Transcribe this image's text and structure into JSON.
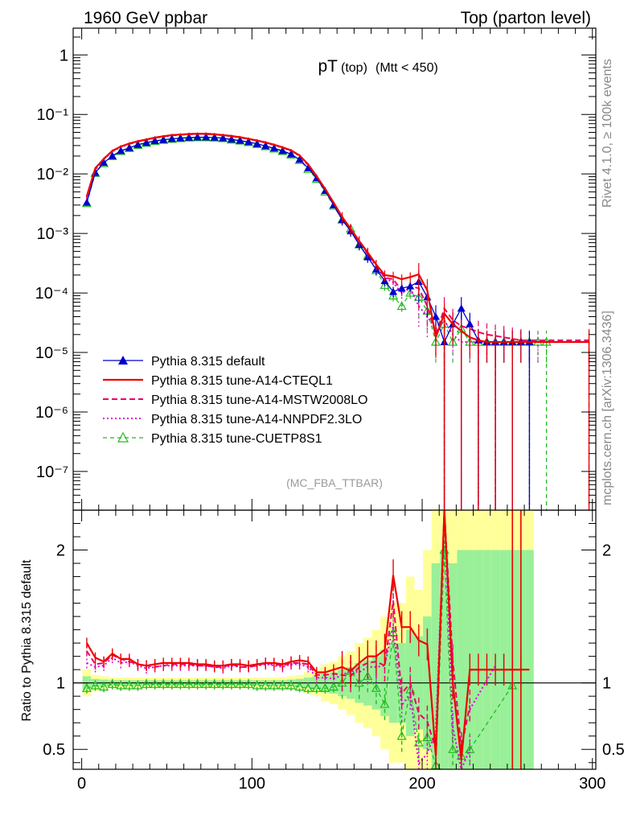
{
  "header": {
    "left": "1960 GeV ppbar",
    "right": "Top (parton level)"
  },
  "side_labels": {
    "rivet": "Rivet 4.1.0, ≥ 100k events",
    "mcplots": "mcplots.cern.ch [arXiv:1306.3436]"
  },
  "chart_data": [
    {
      "type": "line",
      "panel": "main",
      "title_main": "pT",
      "title_sub1": "(top)",
      "title_sub2": "(Mtt < 450)",
      "analysis_tag": "(MC_FBA_TTBAR)",
      "xlabel": "",
      "ylabel": "",
      "xlim": [
        -5,
        302
      ],
      "ylog": true,
      "ylim_log10": [
        -7.65,
        0.45
      ],
      "y_tick_labels": [
        "1",
        "10⁻¹",
        "10⁻²",
        "10⁻³",
        "10⁻⁴",
        "10⁻⁵",
        "10⁻⁶",
        "10⁻⁷"
      ],
      "x_tick_labels": [
        "0",
        "100",
        "200",
        "300"
      ],
      "colors": {
        "default": "#0000cc",
        "cteql1": "#ee0000",
        "mstw": "#ee0066",
        "nnpdf": "#dd00dd",
        "cuetp8s1": "#22bb22"
      },
      "legend": [
        {
          "key": "default",
          "label": "Pythia 8.315 default"
        },
        {
          "key": "cteql1",
          "label": "Pythia 8.315 tune-A14-CTEQL1"
        },
        {
          "key": "mstw",
          "label": "Pythia 8.315 tune-A14-MSTW2008LO"
        },
        {
          "key": "nnpdf",
          "label": "Pythia 8.315 tune-A14-NNPDF2.3LO"
        },
        {
          "key": "cuetp8s1",
          "label": "Pythia 8.315 tune-CUETP8S1"
        }
      ],
      "series_default_x": [
        3,
        8,
        13,
        18,
        23,
        28,
        33,
        38,
        43,
        48,
        53,
        58,
        63,
        68,
        73,
        78,
        83,
        88,
        93,
        98,
        103,
        108,
        113,
        118,
        123,
        128,
        133,
        138,
        143,
        148,
        153,
        158,
        163,
        168,
        173,
        178,
        183,
        188,
        193,
        198,
        203,
        208,
        213,
        218,
        223,
        228,
        233,
        238,
        243,
        248,
        253,
        258,
        263
      ],
      "series_default_y": [
        0.0033,
        0.0105,
        0.0155,
        0.02,
        0.0245,
        0.0275,
        0.031,
        0.0335,
        0.036,
        0.0375,
        0.039,
        0.04,
        0.041,
        0.0415,
        0.0415,
        0.041,
        0.04,
        0.038,
        0.0365,
        0.0345,
        0.032,
        0.0295,
        0.027,
        0.0245,
        0.0215,
        0.0175,
        0.0125,
        0.0085,
        0.0052,
        0.003,
        0.0017,
        0.0011,
        0.00065,
        0.0004,
        0.00025,
        0.00016,
        0.000105,
        0.00012,
        0.00013,
        0.000155,
        8.5e-05,
        4e-05,
        1.5e-05,
        3e-05,
        5.5e-05,
        3e-05,
        1.6e-05,
        1.5e-05,
        1.5e-05,
        1.5e-05,
        1.5e-05,
        1.5e-05,
        1.5e-05
      ],
      "series_cteql1_x": [
        3,
        8,
        13,
        18,
        23,
        28,
        33,
        38,
        43,
        48,
        53,
        58,
        63,
        68,
        73,
        78,
        83,
        88,
        93,
        98,
        103,
        108,
        113,
        118,
        123,
        128,
        133,
        138,
        143,
        148,
        153,
        158,
        163,
        168,
        173,
        178,
        183,
        188,
        193,
        198,
        203,
        208,
        213,
        218,
        223,
        228,
        233,
        238,
        243,
        248,
        253,
        258,
        298
      ],
      "series_cteql1_y": [
        0.0042,
        0.0125,
        0.018,
        0.0245,
        0.029,
        0.0325,
        0.0355,
        0.038,
        0.041,
        0.043,
        0.045,
        0.046,
        0.047,
        0.0475,
        0.0475,
        0.0465,
        0.045,
        0.0435,
        0.0415,
        0.039,
        0.0365,
        0.034,
        0.031,
        0.028,
        0.025,
        0.0205,
        0.0145,
        0.0092,
        0.0056,
        0.0033,
        0.0019,
        0.0012,
        0.00075,
        0.00048,
        0.0003,
        0.0002,
        0.00019,
        0.00017,
        0.000185,
        0.000205,
        0.00011,
        1.8e-05,
        4.5e-05,
        3e-05,
        2.3e-05,
        1.8e-05,
        1.6e-05,
        1.5e-05,
        1.5e-05,
        1.5e-05,
        1.5e-05,
        1.5e-05,
        1.5e-05
      ],
      "series_mstw_x": [
        3,
        8,
        13,
        18,
        23,
        28,
        33,
        38,
        43,
        48,
        53,
        58,
        63,
        68,
        73,
        78,
        83,
        88,
        93,
        98,
        103,
        108,
        113,
        118,
        123,
        128,
        133,
        138,
        143,
        148,
        153,
        158,
        163,
        168,
        173,
        178,
        183,
        188,
        193,
        198,
        203,
        208,
        213,
        218,
        223,
        228,
        233,
        238,
        243,
        248,
        253,
        258,
        298
      ],
      "series_mstw_y": [
        0.0041,
        0.012,
        0.0178,
        0.0242,
        0.0288,
        0.032,
        0.0352,
        0.0378,
        0.0405,
        0.0425,
        0.0445,
        0.0455,
        0.0465,
        0.047,
        0.047,
        0.046,
        0.0448,
        0.0432,
        0.041,
        0.0388,
        0.0362,
        0.0338,
        0.0308,
        0.0278,
        0.0248,
        0.0202,
        0.0142,
        0.009,
        0.0055,
        0.0032,
        0.0018,
        0.00115,
        0.00073,
        0.00046,
        0.00029,
        0.00018,
        0.00017,
        0.00011,
        0.00013,
        0.00012,
        6e-05,
        2e-05,
        5.5e-05,
        3.5e-05,
        2.8e-05,
        2.5e-05,
        2.2e-05,
        2e-05,
        1.9e-05,
        1.8e-05,
        1.7e-05,
        1.6e-05,
        1.6e-05
      ],
      "series_nnpdf_x": [
        3,
        8,
        13,
        18,
        23,
        28,
        33,
        38,
        43,
        48,
        53,
        58,
        63,
        68,
        73,
        78,
        83,
        88,
        93,
        98,
        103,
        108,
        113,
        118,
        123,
        128,
        133,
        138,
        143,
        148,
        153,
        158,
        163,
        168,
        173,
        178,
        183,
        188,
        193,
        198,
        203,
        208,
        213,
        218,
        223,
        228,
        233,
        238,
        243,
        248,
        253,
        258,
        263,
        268
      ],
      "series_nnpdf_y": [
        0.0038,
        0.0118,
        0.0175,
        0.0238,
        0.0282,
        0.0318,
        0.035,
        0.0372,
        0.0402,
        0.0422,
        0.044,
        0.0452,
        0.0462,
        0.0468,
        0.0468,
        0.0458,
        0.0445,
        0.0428,
        0.0408,
        0.0385,
        0.036,
        0.0335,
        0.0305,
        0.0275,
        0.0245,
        0.02,
        0.014,
        0.0088,
        0.0054,
        0.0031,
        0.0018,
        0.0012,
        0.0007,
        0.00045,
        0.00028,
        0.00018,
        0.00015,
        0.0001,
        0.00012,
        6e-05,
        4e-05,
        2.5e-05,
        3.5e-05,
        2e-05,
        1.5e-05,
        1.5e-05,
        1.5e-05,
        1.5e-05,
        1.5e-05,
        1.5e-05,
        1.5e-05,
        1.5e-05,
        1.5e-05,
        1.5e-05
      ],
      "series_cuetp8s1_x": [
        3,
        8,
        13,
        18,
        23,
        28,
        33,
        38,
        43,
        48,
        53,
        58,
        63,
        68,
        73,
        78,
        83,
        88,
        93,
        98,
        103,
        108,
        113,
        118,
        123,
        128,
        133,
        138,
        143,
        148,
        153,
        158,
        163,
        168,
        173,
        178,
        183,
        188,
        193,
        198,
        203,
        208,
        213,
        218,
        223,
        228,
        233,
        238,
        243,
        248,
        253,
        258,
        263,
        268,
        273
      ],
      "series_cuetp8s1_y": [
        0.0032,
        0.0103,
        0.015,
        0.0198,
        0.024,
        0.027,
        0.0305,
        0.033,
        0.0355,
        0.037,
        0.0385,
        0.0395,
        0.0405,
        0.041,
        0.041,
        0.0405,
        0.0395,
        0.0375,
        0.036,
        0.034,
        0.0315,
        0.029,
        0.0265,
        0.024,
        0.021,
        0.017,
        0.012,
        0.0082,
        0.005,
        0.0029,
        0.0017,
        0.0012,
        0.00065,
        0.00042,
        0.00024,
        0.000135,
        9e-05,
        6e-05,
        0.0001,
        8.5e-05,
        5e-05,
        1.5e-05,
        3e-05,
        1.5e-05,
        2.5e-05,
        1.5e-05,
        1.5e-05,
        1.5e-05,
        1.5e-05,
        1.5e-05,
        1.5e-05,
        1.5e-05,
        1.5e-05,
        1.5e-05,
        1.5e-05
      ]
    },
    {
      "type": "line",
      "panel": "ratio",
      "ylabel": "Ratio to Pythia 8.315 default",
      "xlim": [
        -5,
        302
      ],
      "ylim": [
        0.35,
        2.3
      ],
      "y_tick_labels": [
        "0.5",
        "1",
        "2"
      ],
      "x_tick_labels": [
        "0",
        "100",
        "200",
        "300"
      ],
      "band_x": [
        3,
        8,
        13,
        18,
        23,
        28,
        33,
        38,
        43,
        48,
        53,
        58,
        63,
        68,
        73,
        78,
        83,
        88,
        93,
        98,
        103,
        108,
        113,
        118,
        123,
        128,
        133,
        138,
        143,
        148,
        153,
        158,
        163,
        168,
        173,
        178,
        183,
        188,
        193,
        198,
        203,
        208,
        213,
        218,
        223,
        228,
        233,
        238,
        243,
        248,
        253,
        258,
        263
      ],
      "band_green_halfwidth": [
        0.05,
        0.03,
        0.025,
        0.02,
        0.02,
        0.02,
        0.02,
        0.02,
        0.02,
        0.02,
        0.02,
        0.02,
        0.02,
        0.02,
        0.02,
        0.02,
        0.02,
        0.02,
        0.02,
        0.02,
        0.02,
        0.02,
        0.02,
        0.02,
        0.025,
        0.03,
        0.04,
        0.05,
        0.07,
        0.08,
        0.1,
        0.12,
        0.15,
        0.17,
        0.2,
        0.25,
        0.3,
        0.3,
        0.4,
        0.35,
        0.5,
        0.9,
        1.0,
        0.9,
        1.0,
        1.0,
        1.0,
        1.0,
        1.0,
        1.0,
        1.0,
        1.0,
        1.0
      ],
      "band_yellow_halfwidth": [
        0.1,
        0.06,
        0.05,
        0.04,
        0.04,
        0.04,
        0.04,
        0.04,
        0.04,
        0.04,
        0.04,
        0.04,
        0.04,
        0.04,
        0.04,
        0.04,
        0.04,
        0.04,
        0.04,
        0.04,
        0.04,
        0.04,
        0.04,
        0.045,
        0.05,
        0.06,
        0.08,
        0.1,
        0.14,
        0.16,
        0.2,
        0.24,
        0.3,
        0.34,
        0.4,
        0.5,
        0.6,
        0.6,
        0.8,
        0.7,
        1.0,
        1.8,
        2.0,
        1.8,
        2.0,
        2.0,
        2.0,
        2.0,
        2.0,
        2.0,
        2.0,
        2.0,
        2.0
      ],
      "ratio_cteql1_y": [
        1.3,
        1.19,
        1.16,
        1.22,
        1.18,
        1.18,
        1.14,
        1.13,
        1.14,
        1.15,
        1.15,
        1.15,
        1.15,
        1.14,
        1.14,
        1.13,
        1.13,
        1.14,
        1.14,
        1.13,
        1.14,
        1.15,
        1.15,
        1.14,
        1.16,
        1.17,
        1.16,
        1.08,
        1.08,
        1.1,
        1.12,
        1.09,
        1.15,
        1.2,
        1.2,
        1.25,
        1.81,
        1.42,
        1.42,
        1.32,
        1.29,
        0.45,
        3.0,
        1.0,
        0.42,
        1.1,
        1.1,
        1.1,
        1.1,
        1.1,
        1.1,
        1.1
      ],
      "ratio_mstw_y": [
        1.24,
        1.14,
        1.15,
        1.21,
        1.18,
        1.16,
        1.14,
        1.13,
        1.12,
        1.13,
        1.14,
        1.14,
        1.14,
        1.13,
        1.13,
        1.12,
        1.12,
        1.14,
        1.12,
        1.12,
        1.13,
        1.15,
        1.14,
        1.13,
        1.15,
        1.15,
        1.14,
        1.06,
        1.06,
        1.07,
        1.06,
        1.05,
        1.12,
        1.15,
        1.16,
        1.13,
        1.62,
        0.92,
        1.0,
        0.77,
        0.71,
        0.5,
        3.67,
        1.17,
        0.51,
        0.83
      ],
      "ratio_nnpdf_y": [
        1.15,
        1.12,
        1.13,
        1.19,
        1.15,
        1.16,
        1.13,
        1.11,
        1.12,
        1.13,
        1.13,
        1.13,
        1.13,
        1.13,
        1.13,
        1.12,
        1.11,
        1.13,
        1.12,
        1.12,
        1.13,
        1.14,
        1.13,
        1.12,
        1.14,
        1.14,
        1.12,
        1.04,
        1.04,
        1.03,
        1.06,
        1.09,
        1.08,
        1.12,
        1.12,
        1.13,
        1.43,
        0.83,
        0.92,
        0.39,
        0.47,
        0.63,
        2.33,
        0.67,
        0.27,
        0.5
      ],
      "ratio_cuetp8s1_y": [
        0.96,
        0.98,
        0.97,
        0.99,
        0.98,
        0.98,
        0.98,
        0.99,
        0.99,
        0.99,
        0.99,
        0.99,
        0.99,
        0.99,
        0.99,
        0.99,
        0.99,
        0.99,
        0.99,
        0.99,
        0.98,
        0.98,
        0.98,
        0.98,
        0.98,
        0.97,
        0.96,
        0.96,
        0.96,
        0.97,
        1.0,
        1.09,
        1.0,
        1.05,
        0.96,
        0.84,
        1.38,
        0.6,
        0.95,
        0.55,
        0.59,
        0.38,
        2.0,
        0.5,
        0.45,
        0.5
      ],
      "ratio_tail": {
        "cteql1_flat_x": [
          228,
          263
        ],
        "cteql1_flat_y": 1.1,
        "nnpdf_line_x": [
          228,
          243
        ],
        "nnpdf_line_y": [
          0.8,
          1.13
        ],
        "cuetp8s1_line_x": [
          228,
          253
        ],
        "cuetp8s1_line_y": [
          0.5,
          0.98
        ]
      }
    }
  ]
}
